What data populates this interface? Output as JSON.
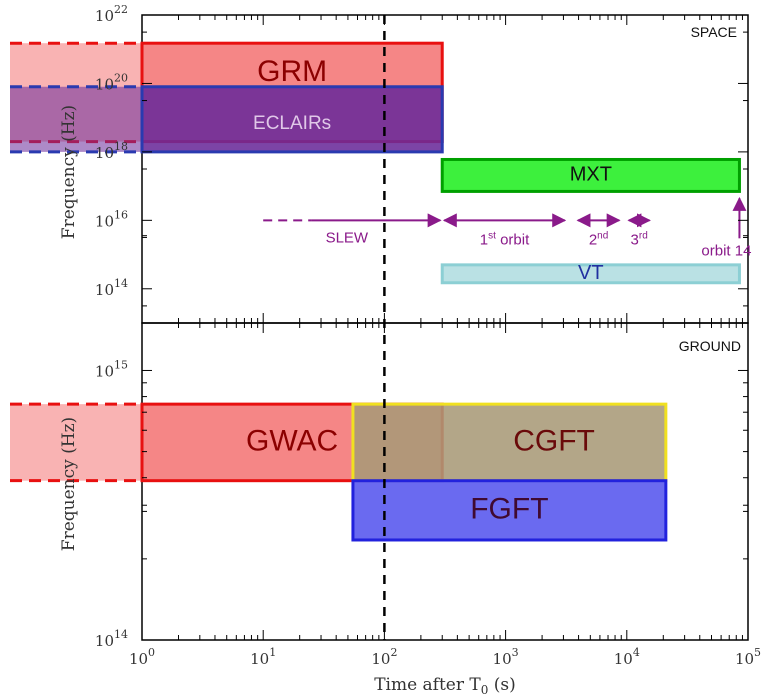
{
  "chart_data": [
    {
      "type": "bar",
      "panel": "space",
      "corner_label": "SPACE",
      "ylabel": "Frequency (Hz)",
      "xscale": "log",
      "yscale": "log",
      "xlim": [
        1,
        100000
      ],
      "ylim": [
        10000000000000.0,
        1e+22
      ],
      "x_ticks": [
        {
          "base": "10",
          "exp": "0"
        },
        {
          "base": "10",
          "exp": "1"
        },
        {
          "base": "10",
          "exp": "2"
        },
        {
          "base": "10",
          "exp": "3"
        },
        {
          "base": "10",
          "exp": "4"
        },
        {
          "base": "10",
          "exp": "5"
        }
      ],
      "y_ticks": [
        {
          "value": 100000000000000.0,
          "base": "10",
          "exp": "14"
        },
        {
          "value": 1e+16,
          "base": "10",
          "exp": "16"
        },
        {
          "value": 1e+18,
          "base": "10",
          "exp": "18"
        },
        {
          "value": 1e+20,
          "base": "10",
          "exp": "20"
        },
        {
          "value": 1e+22,
          "base": "10",
          "exp": "22"
        }
      ],
      "instruments": [
        {
          "name": "GRM",
          "t_start": 1,
          "t_end": 300,
          "f_low": 2e+18,
          "f_high": 1.5e+21,
          "fill": "#f47575",
          "stroke": "#e81010",
          "text_color": "#8b0000",
          "pre_trigger_extension": true
        },
        {
          "name": "ECLAIRs",
          "t_start": 1,
          "t_end": 300,
          "f_low": 1e+18,
          "f_high": 8e+19,
          "fill": "#6a2a9a",
          "stroke": "#2a3ab0",
          "text_color": "#e0c8e8",
          "pre_trigger_extension": true
        },
        {
          "name": "MXT",
          "t_start": 300,
          "t_end": 85000,
          "f_low": 7e+16,
          "f_high": 6e+17,
          "fill": "#22ee22",
          "stroke": "#00a000",
          "text_color": "#111111",
          "pre_trigger_extension": false
        },
        {
          "name": "VT",
          "t_start": 300,
          "t_end": 85000,
          "f_low": 150000000000000.0,
          "f_high": 500000000000000.0,
          "fill": "#b0dde0",
          "stroke": "#8ccfd4",
          "text_color": "#2030a0",
          "pre_trigger_extension": false
        }
      ],
      "phases": [
        {
          "label": "SLEW",
          "t_start": 25,
          "t_end": 300
        },
        {
          "label": "1st orbit",
          "t_start": 300,
          "t_end": 3200
        },
        {
          "label": "2nd",
          "t_start": 3800,
          "t_end": 9000
        },
        {
          "label": "3rd",
          "t_start": 10000,
          "t_end": 16000
        },
        {
          "label": "orbit 14",
          "t_at": 85000
        }
      ]
    },
    {
      "type": "bar",
      "panel": "ground",
      "corner_label": "GROUND",
      "xlabel": "Time after T0 (s)",
      "ylabel": "Frequency (Hz)",
      "xscale": "log",
      "yscale": "log",
      "xlim": [
        1,
        100000
      ],
      "ylim": [
        100000000000000.0,
        1500000000000000.0
      ],
      "y_ticks": [
        {
          "value": 100000000000000.0,
          "base": "10",
          "exp": "14"
        },
        {
          "value": 1000000000000000.0,
          "base": "10",
          "exp": "15"
        }
      ],
      "instruments": [
        {
          "name": "GWAC",
          "t_start": 1,
          "t_end": 300,
          "f_low": 390000000000000.0,
          "f_high": 750000000000000.0,
          "fill": "#f47575",
          "stroke": "#e81010",
          "text_color": "#8b0000",
          "pre_trigger_extension": true
        },
        {
          "name": "CGFT",
          "t_start": 55,
          "t_end": 21000,
          "f_low": 390000000000000.0,
          "f_high": 750000000000000.0,
          "fill": "#a89a78",
          "stroke": "#f0e020",
          "text_color": "#6a0a0a",
          "pre_trigger_extension": false
        },
        {
          "name": "FGFT",
          "t_start": 55,
          "t_end": 21000,
          "f_low": 235000000000000.0,
          "f_high": 390000000000000.0,
          "fill": "#5555ee",
          "stroke": "#2222dd",
          "text_color": "#400a30",
          "pre_trigger_extension": false
        }
      ]
    }
  ],
  "trigger_line_t": 100,
  "xlabel_main": "Time after T",
  "xlabel_sub": "0",
  "xlabel_unit": " (s)",
  "ylabel_text": "Frequency (Hz)"
}
